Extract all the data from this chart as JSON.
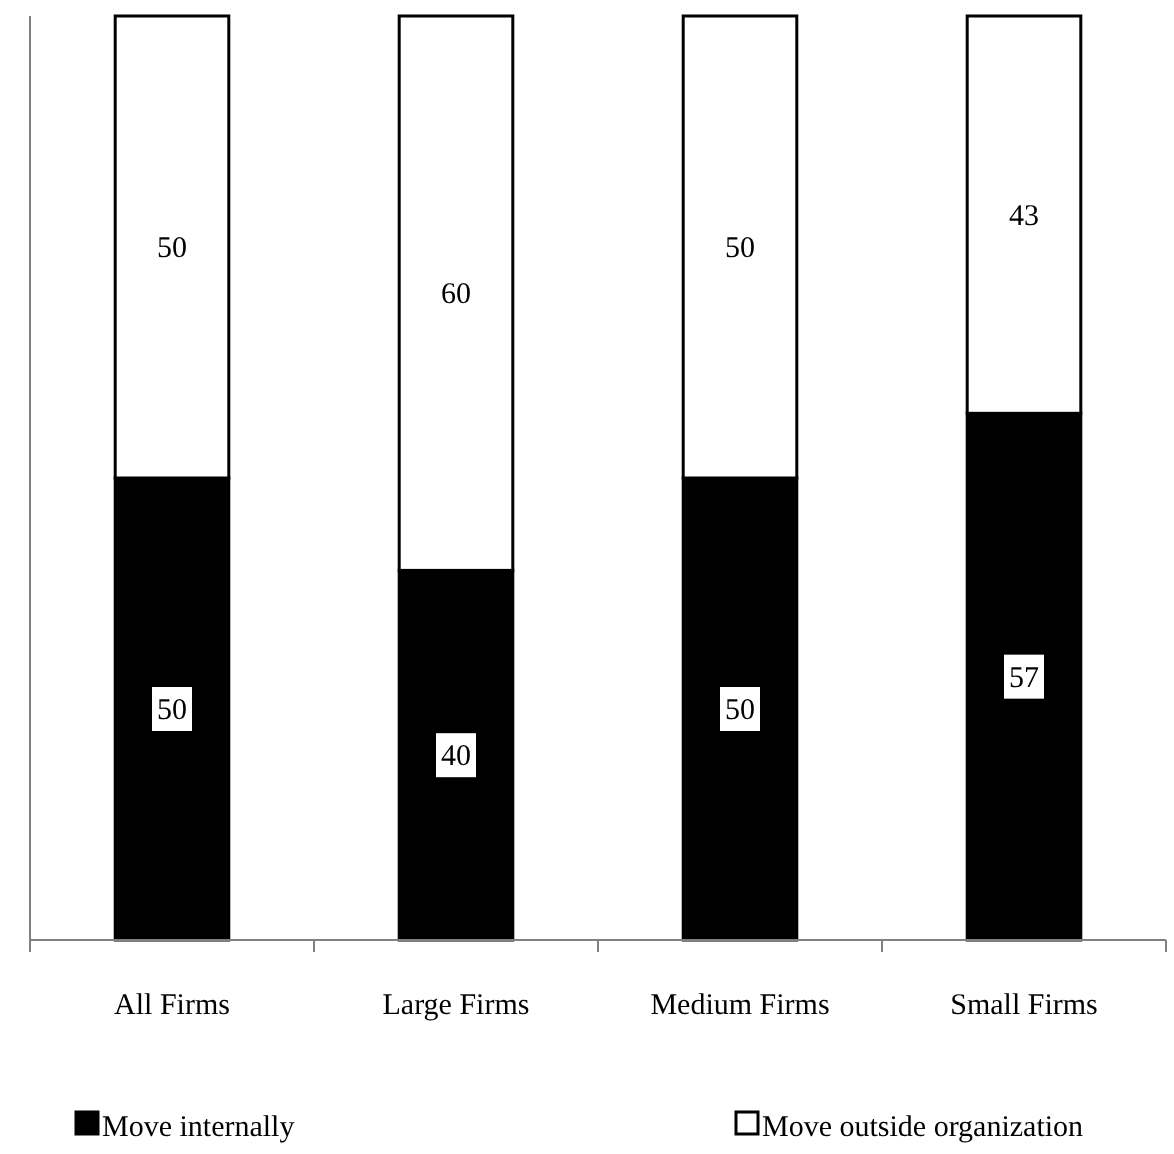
{
  "chart_data": {
    "type": "bar",
    "stacked": true,
    "categories": [
      "All Firms",
      "Large Firms",
      "Medium Firms",
      "Small Firms"
    ],
    "series": [
      {
        "name": "Move internally",
        "color": "#000000",
        "values": [
          50,
          40,
          50,
          57
        ]
      },
      {
        "name": "Move outside organization",
        "color": "#ffffff",
        "values": [
          50,
          60,
          50,
          43
        ]
      }
    ],
    "ylim": [
      0,
      100
    ],
    "tick_labels": "x",
    "data_labels": true,
    "legend": "bottom"
  }
}
